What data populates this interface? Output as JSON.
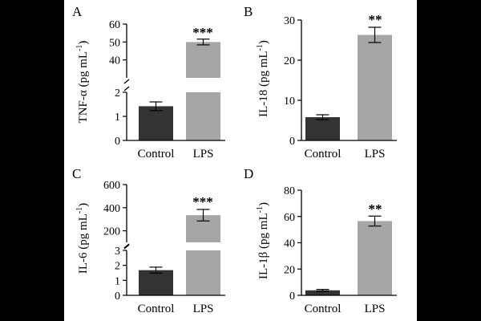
{
  "chart_data": [
    {
      "panel": "A",
      "type": "bar",
      "ylabel": "TNF-α (pg mL",
      "ylabel_sup": "-1",
      "ylabel_close": ")",
      "categories": [
        "Control",
        "LPS"
      ],
      "values": [
        1.42,
        50
      ],
      "errors": [
        0.18,
        1.6
      ],
      "colors": [
        "#333333",
        "#a6a6a6"
      ],
      "significance": "***",
      "broken_axis": true,
      "lower_range": [
        0,
        2
      ],
      "upper_range": [
        30,
        60
      ],
      "lower_ticks": [
        "0",
        "1",
        "2"
      ],
      "upper_ticks": [
        "40",
        "50",
        "60"
      ]
    },
    {
      "panel": "B",
      "type": "bar",
      "ylabel": "IL-18 (pg mL",
      "ylabel_sup": "-1",
      "ylabel_close": ")",
      "categories": [
        "Control",
        "LPS"
      ],
      "values": [
        5.8,
        26.3
      ],
      "errors": [
        0.6,
        1.9
      ],
      "colors": [
        "#333333",
        "#a6a6a6"
      ],
      "significance": "**",
      "broken_axis": false,
      "ylim": [
        0,
        30
      ],
      "ticks": [
        "0",
        "10",
        "20",
        "30"
      ]
    },
    {
      "panel": "C",
      "type": "bar",
      "ylabel": "IL-6 (pg mL",
      "ylabel_sup": "-1",
      "ylabel_close": ")",
      "categories": [
        "Control",
        "LPS"
      ],
      "values": [
        1.68,
        335
      ],
      "errors": [
        0.2,
        50
      ],
      "colors": [
        "#333333",
        "#a6a6a6"
      ],
      "significance": "***",
      "broken_axis": true,
      "lower_range": [
        0,
        3
      ],
      "upper_range": [
        100,
        600
      ],
      "lower_ticks": [
        "0",
        "1",
        "2",
        "3"
      ],
      "upper_ticks": [
        "200",
        "400",
        "600"
      ]
    },
    {
      "panel": "D",
      "type": "bar",
      "ylabel": "IL-1β (pg mL",
      "ylabel_sup": "-1",
      "ylabel_close": ")",
      "categories": [
        "Control",
        "LPS"
      ],
      "values": [
        3.8,
        56.5
      ],
      "errors": [
        0.7,
        3.8
      ],
      "colors": [
        "#333333",
        "#a6a6a6"
      ],
      "significance": "**",
      "broken_axis": false,
      "ylim": [
        0,
        80
      ],
      "ticks": [
        "0",
        "20",
        "40",
        "60",
        "80"
      ]
    }
  ]
}
